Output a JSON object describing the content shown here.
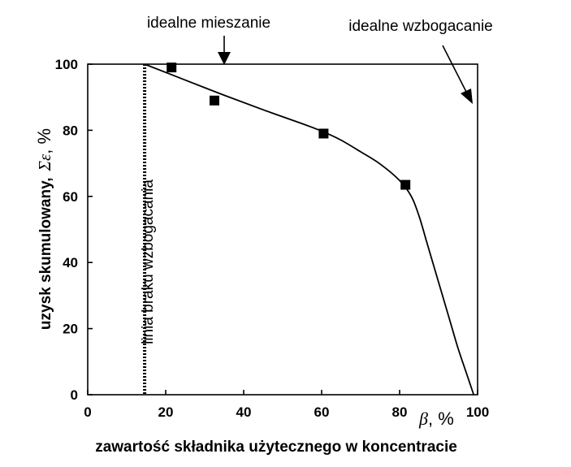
{
  "chart_data": {
    "type": "line",
    "xlabel": "zawartość składnika użytecznego w koncentracie",
    "x_symbol": "β",
    "x_unit": ", %",
    "ylabel": "uzysk skumulowany,",
    "y_symbol": "Σε",
    "y_unit": ", %",
    "xlim": [
      0,
      100
    ],
    "ylim": [
      0,
      100
    ],
    "x_ticks": [
      "0",
      "20",
      "40",
      "60",
      "80",
      "100"
    ],
    "y_ticks": [
      "0",
      "20",
      "40",
      "60",
      "80",
      "100"
    ],
    "grid": false,
    "series": [
      {
        "kind": "markers",
        "marker": "square",
        "points": [
          [
            21.5,
            99
          ],
          [
            32.5,
            89
          ],
          [
            60.5,
            79
          ],
          [
            81.5,
            63.5
          ]
        ]
      },
      {
        "kind": "curve",
        "points": [
          [
            14.6,
            100
          ],
          [
            25,
            95.2
          ],
          [
            35,
            90.6
          ],
          [
            45,
            86.2
          ],
          [
            55,
            82
          ],
          [
            60.5,
            79.5
          ],
          [
            65,
            77
          ],
          [
            70,
            73.5
          ],
          [
            75,
            69.8
          ],
          [
            80,
            64.8
          ],
          [
            83,
            60
          ],
          [
            85,
            54
          ],
          [
            87,
            46
          ],
          [
            89,
            38
          ],
          [
            91,
            30
          ],
          [
            93,
            22
          ],
          [
            95,
            14
          ],
          [
            97,
            7
          ],
          [
            99,
            0
          ]
        ]
      }
    ],
    "reference_lines": [
      {
        "orientation": "vertical",
        "x": 14.6,
        "style": "dotted",
        "label": "linia braku wzbogacania"
      }
    ],
    "annotations": [
      {
        "text": "idealne mieszanie",
        "arrow_to": [
          35,
          100
        ]
      },
      {
        "text": "idealne wzbogacanie",
        "arrow_to": [
          99,
          88.5
        ]
      }
    ]
  }
}
